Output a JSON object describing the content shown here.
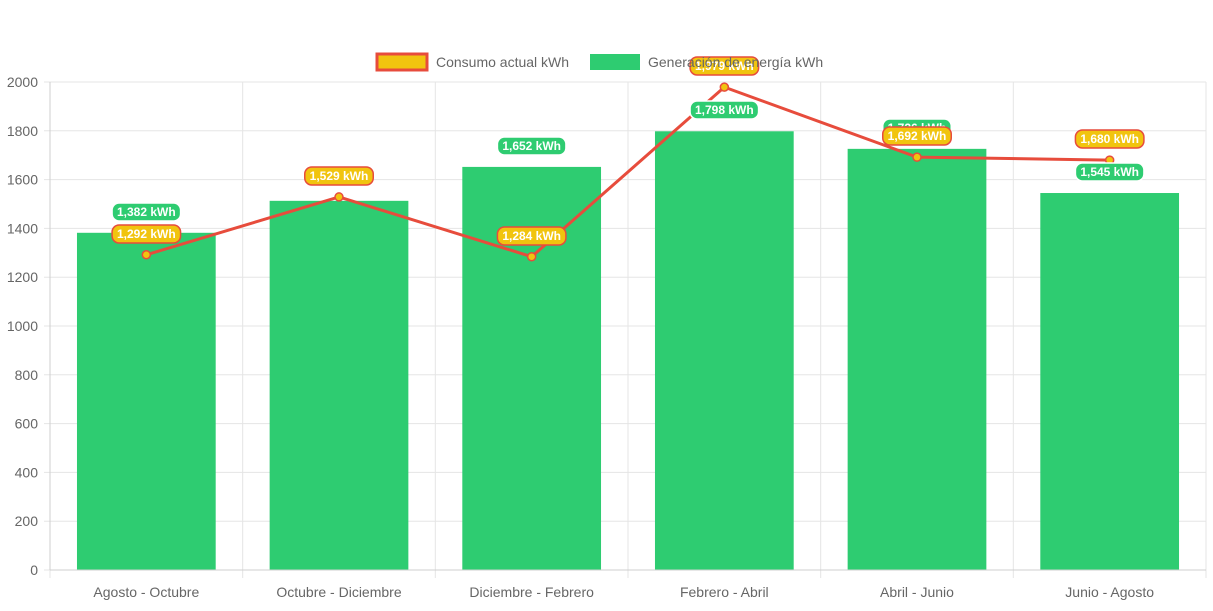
{
  "chart_data": {
    "type": "bar",
    "categories": [
      "Agosto - Octubre",
      "Octubre - Diciembre",
      "Diciembre - Febrero",
      "Febrero - Abril",
      "Abril - Junio",
      "Junio - Agosto"
    ],
    "series": [
      {
        "name": "Consumo actual kWh",
        "type": "line",
        "values": [
          1292,
          1529,
          1284,
          1979,
          1692,
          1680
        ],
        "labels": [
          "1,292 kWh",
          "1,529 kWh",
          "1,284 kWh",
          "1,979 kWh",
          "1,692 kWh",
          "1,680 kWh"
        ],
        "color": "#e74c3c",
        "fill_color": "#f1c40f"
      },
      {
        "name": "Generación de energía kWh",
        "type": "bar",
        "values": [
          1382,
          1513,
          1652,
          1798,
          1726,
          1545
        ],
        "labels": [
          "1,382 kWh",
          "",
          "1,652 kWh",
          "1,798 kWh",
          "1,726 kWh",
          "1,545 kWh"
        ],
        "color": "#2ecc71"
      }
    ],
    "yticks": [
      "0",
      "200",
      "400",
      "600",
      "800",
      "1000",
      "1200",
      "1400",
      "1600",
      "1800",
      "2000"
    ],
    "ylim": [
      0,
      2000
    ],
    "grid": true,
    "legend_position": "top-center"
  }
}
